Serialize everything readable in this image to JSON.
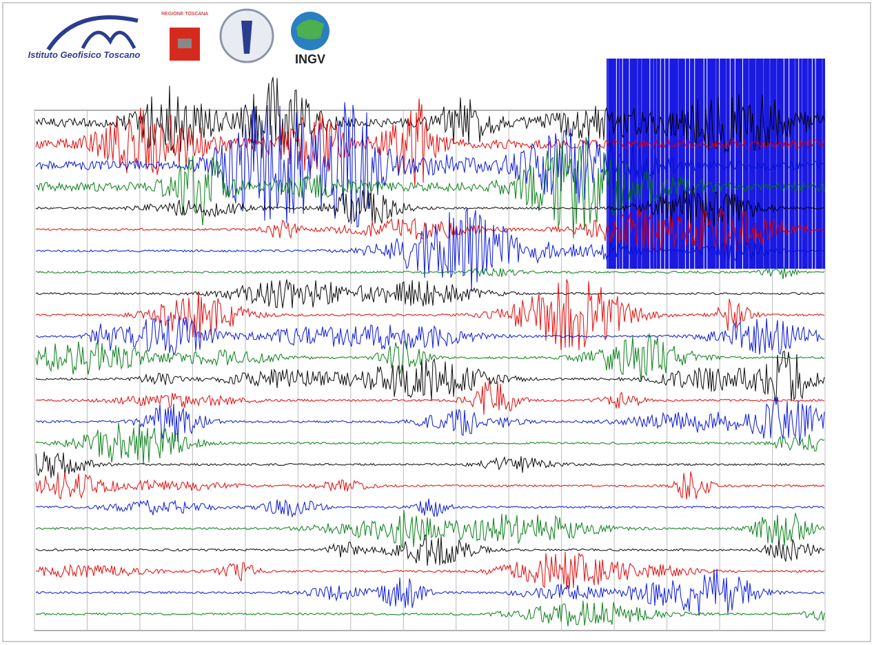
{
  "header": {
    "logo_1": "Istituto Geofisico Toscano",
    "logo_2": "REGIONE TOSCANA",
    "logo_4": "INGV"
  }
}
